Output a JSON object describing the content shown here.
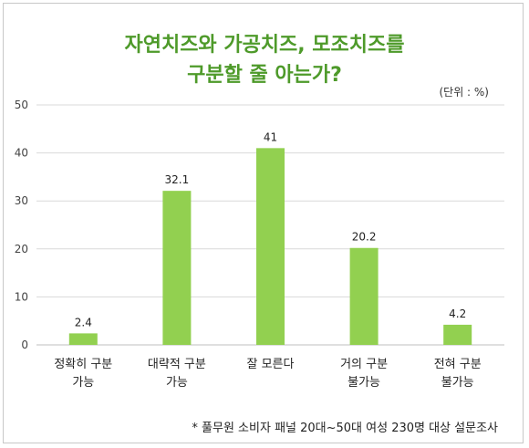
{
  "chart_data": {
    "type": "bar",
    "title_lines": [
      "자연치즈와 가공치즈, 모조치즈를",
      "구분할 줄 아는가?"
    ],
    "unit_note": "(단위 : %)",
    "categories": [
      [
        "정확히 구분",
        "가능"
      ],
      [
        "대략적 구분",
        "가능"
      ],
      [
        "잘 모른다"
      ],
      [
        "거의 구분",
        "불가능"
      ],
      [
        "전혀 구분",
        "불가능"
      ]
    ],
    "values": [
      2.4,
      32.1,
      41,
      20.2,
      4.2
    ],
    "data_labels": [
      "2.4",
      "32.1",
      "41",
      "20.2",
      "4.2"
    ],
    "yticks": [
      "0",
      "10",
      "20",
      "30",
      "40",
      "50"
    ],
    "ylim": [
      0,
      50
    ],
    "grid": true,
    "bar_color": "#92d050",
    "title_color": "#4e9a2a",
    "footnote": "* 풀무원 소비자 패널 20대~50대 여성 230명 대상 설문조사"
  }
}
